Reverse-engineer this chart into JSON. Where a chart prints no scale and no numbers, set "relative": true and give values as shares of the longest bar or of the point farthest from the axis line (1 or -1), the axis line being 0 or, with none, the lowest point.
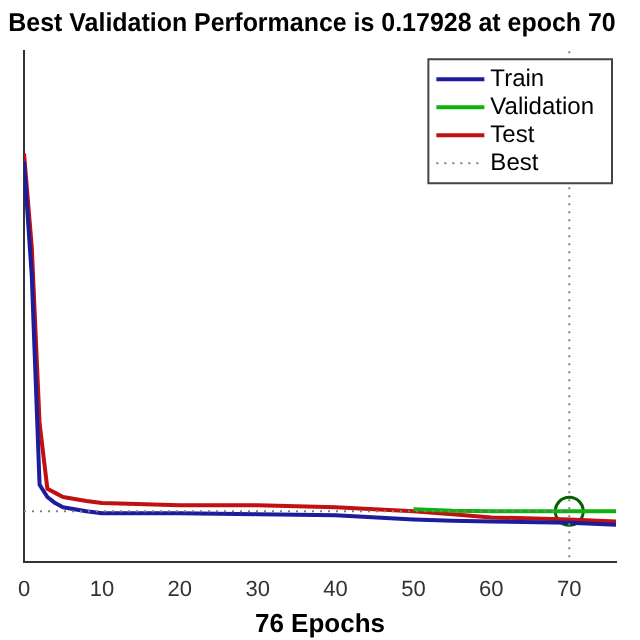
{
  "chart_data": {
    "type": "line",
    "title": "Best Validation Performance is 0.17928 at epoch 70",
    "xlabel": "76 Epochs",
    "relative": true,
    "x": [
      0,
      1,
      2,
      3,
      4,
      5,
      8,
      10,
      20,
      30,
      40,
      50,
      55,
      60,
      70,
      76
    ],
    "xlim": [
      0,
      76
    ],
    "xticks": [
      0,
      10,
      20,
      30,
      40,
      50,
      60,
      70
    ],
    "tick_labels": "x",
    "grid": false,
    "legend": "top right",
    "marker": "none",
    "line_style": "solid",
    "series": [
      {
        "name": "Train",
        "color": "#1c1c9c",
        "values": [
          0.98,
          0.7,
          0.19,
          0.16,
          0.145,
          0.135,
          0.125,
          0.12,
          0.12,
          0.118,
          0.115,
          0.105,
          0.102,
          0.1,
          0.097,
          0.092
        ]
      },
      {
        "name": "Validation",
        "color": "#10b010",
        "values": [
          null,
          null,
          null,
          null,
          null,
          null,
          null,
          null,
          null,
          null,
          null,
          0.13,
          0.126,
          0.125,
          0.125,
          0.125
        ]
      },
      {
        "name": "Test",
        "color": "#c01010",
        "values": [
          1,
          0.77,
          0.34,
          0.18,
          0.17,
          0.16,
          0.15,
          0.145,
          0.14,
          0.14,
          0.135,
          0.125,
          0.118,
          0.11,
          0.105,
          0.1
        ]
      },
      {
        "type": "scatter",
        "color": "#006400",
        "marker": "circle",
        "x": [
          70
        ],
        "values": [
          0.125
        ]
      }
    ],
    "ref_lines": [
      {
        "axis": "x",
        "value": 70,
        "label": "Best",
        "color": "#808080",
        "line_style": "dotted"
      },
      {
        "axis": "y",
        "value": 0.125,
        "color": "#808080",
        "line_style": "dotted"
      }
    ]
  }
}
